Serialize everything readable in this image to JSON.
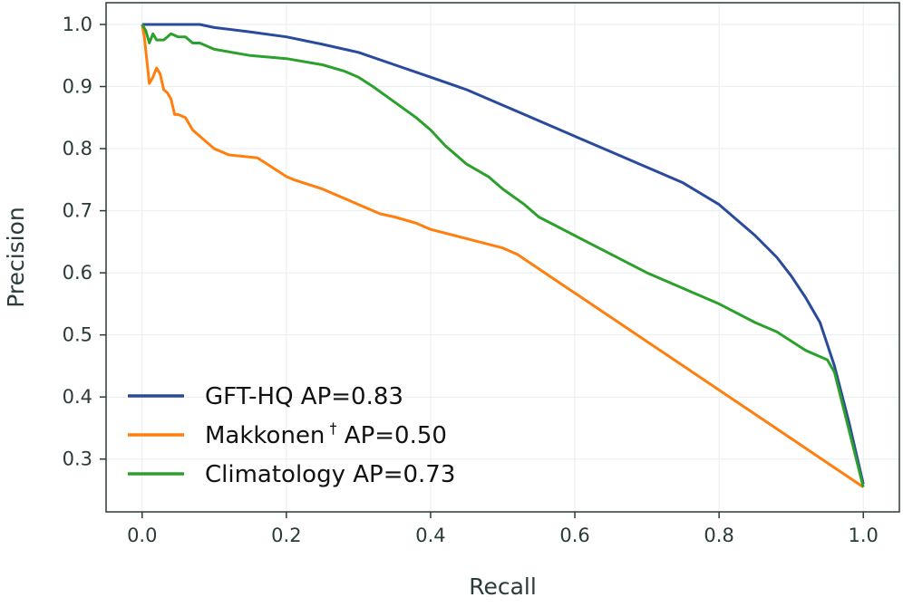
{
  "chart_data": {
    "type": "line",
    "title": "",
    "xlabel": "Recall",
    "ylabel": "Precision",
    "xlim": [
      -0.05,
      1.05
    ],
    "ylim": [
      0.215,
      1.035
    ],
    "grid": true,
    "legend_position": "lower-left",
    "x_ticks": [
      0.0,
      0.2,
      0.4,
      0.6,
      0.8,
      1.0
    ],
    "x_tick_labels": [
      "0.0",
      "0.2",
      "0.4",
      "0.6",
      "0.8",
      "1.0"
    ],
    "y_ticks": [
      0.3,
      0.4,
      0.5,
      0.6,
      0.7,
      0.8,
      0.9,
      1.0
    ],
    "y_tick_labels": [
      "0.3",
      "0.4",
      "0.5",
      "0.6",
      "0.7",
      "0.8",
      "0.9",
      "1.0"
    ],
    "series": [
      {
        "name": "GFT-HQ",
        "label_main": "GFT-HQ AP=0.83",
        "label_sup": "",
        "label_tail": "",
        "color": "#2a4b9b",
        "x": [
          0.0,
          0.01,
          0.05,
          0.08,
          0.1,
          0.15,
          0.2,
          0.25,
          0.3,
          0.35,
          0.4,
          0.45,
          0.5,
          0.55,
          0.6,
          0.65,
          0.7,
          0.75,
          0.8,
          0.85,
          0.88,
          0.9,
          0.92,
          0.94,
          0.96,
          0.98,
          1.0
        ],
        "y": [
          1.0,
          1.0,
          1.0,
          1.0,
          0.995,
          0.988,
          0.98,
          0.968,
          0.955,
          0.935,
          0.915,
          0.895,
          0.87,
          0.845,
          0.82,
          0.795,
          0.77,
          0.745,
          0.71,
          0.66,
          0.625,
          0.595,
          0.56,
          0.52,
          0.45,
          0.36,
          0.26
        ]
      },
      {
        "name": "Makkonen",
        "label_main": "Makkonen",
        "label_sup": "†",
        "label_tail": " AP=0.50",
        "color": "#ff7f0e",
        "x": [
          0.0,
          0.003,
          0.01,
          0.015,
          0.02,
          0.025,
          0.03,
          0.035,
          0.04,
          0.045,
          0.05,
          0.06,
          0.07,
          0.08,
          0.1,
          0.12,
          0.16,
          0.2,
          0.21,
          0.25,
          0.3,
          0.33,
          0.35,
          0.38,
          0.4,
          0.45,
          0.5,
          0.52,
          1.0
        ],
        "y": [
          1.0,
          0.98,
          0.905,
          0.915,
          0.93,
          0.92,
          0.895,
          0.89,
          0.88,
          0.855,
          0.855,
          0.85,
          0.83,
          0.82,
          0.8,
          0.79,
          0.785,
          0.755,
          0.75,
          0.735,
          0.71,
          0.695,
          0.69,
          0.68,
          0.67,
          0.655,
          0.64,
          0.63,
          0.255
        ]
      },
      {
        "name": "Climatology",
        "label_main": "Climatology AP=0.73",
        "label_sup": "",
        "label_tail": "",
        "color": "#2ca02c",
        "x": [
          0.0,
          0.005,
          0.01,
          0.015,
          0.02,
          0.03,
          0.04,
          0.05,
          0.06,
          0.07,
          0.08,
          0.1,
          0.15,
          0.2,
          0.25,
          0.28,
          0.3,
          0.32,
          0.35,
          0.38,
          0.4,
          0.42,
          0.45,
          0.48,
          0.5,
          0.53,
          0.55,
          0.6,
          0.65,
          0.7,
          0.75,
          0.8,
          0.85,
          0.88,
          0.9,
          0.92,
          0.95,
          0.96,
          1.0
        ],
        "y": [
          1.0,
          0.99,
          0.97,
          0.985,
          0.975,
          0.975,
          0.985,
          0.98,
          0.98,
          0.97,
          0.97,
          0.96,
          0.95,
          0.945,
          0.935,
          0.925,
          0.915,
          0.9,
          0.875,
          0.85,
          0.83,
          0.805,
          0.775,
          0.755,
          0.735,
          0.71,
          0.69,
          0.66,
          0.63,
          0.6,
          0.575,
          0.55,
          0.52,
          0.505,
          0.49,
          0.475,
          0.46,
          0.44,
          0.255
        ]
      }
    ]
  }
}
